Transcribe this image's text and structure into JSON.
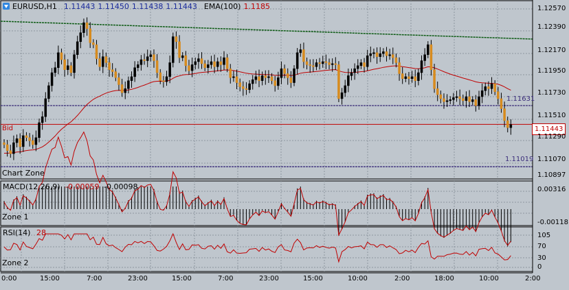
{
  "header": {
    "symbol": "EURUSD,H1",
    "open": "1.11443",
    "high": "1.11450",
    "low": "1.11438",
    "close": "1.11443",
    "ema_label": "EMA(100)",
    "ema_value": "1.1185"
  },
  "main_pane": {
    "bid_label": "Bid",
    "bid_value": "1.11443",
    "zone_label": "Chart Zone",
    "upper_level_label": "1.11631",
    "lower_level_label": "1.11019",
    "price_axis": [
      "1.12570",
      "1.12390",
      "1.12170",
      "1.11950",
      "1.11730",
      "1.11510",
      "1.11290",
      "1.11070",
      "1.10897"
    ]
  },
  "macd_pane": {
    "label": "MACD(12,26,9)",
    "value1": "-0.00059",
    "value2": "-0.00098",
    "zone_label": "Zone 1",
    "axis": [
      "0.00316",
      "-0.00118"
    ]
  },
  "rsi_pane": {
    "label": "RSI(14)",
    "value": "28",
    "zone_label": "Zone 2",
    "axis": [
      "105",
      "70",
      "30",
      "0"
    ]
  },
  "time_axis": [
    "0:00",
    "15:00",
    "7:00",
    "23:00",
    "15:00",
    "7:00",
    "23:00",
    "15:00",
    "10:00",
    "2:00",
    "18:00",
    "10:00",
    "2:00"
  ],
  "colors": {
    "background": "#bfc6cd",
    "grid": "#8e969e",
    "candle_up": "#000000",
    "candle_down": "#d78b1e",
    "ema": "#c00000",
    "trendline": "#0b5a12",
    "level": "#3a2c7a",
    "bid": "#c00000"
  },
  "chart_data": {
    "type": "candlestick",
    "symbol": "EURUSD,H1",
    "ylim": [
      1.10897,
      1.1268
    ],
    "ema_period": 100,
    "horizontal_levels": [
      1.11631,
      1.11019
    ],
    "bid": 1.11443,
    "close": [
      1.1124,
      1.1118,
      1.1115,
      1.1126,
      1.113,
      1.1122,
      1.1133,
      1.1131,
      1.1128,
      1.1124,
      1.1131,
      1.1146,
      1.1152,
      1.117,
      1.1183,
      1.1196,
      1.1201,
      1.1216,
      1.1209,
      1.1199,
      1.1203,
      1.1196,
      1.1214,
      1.1227,
      1.1236,
      1.1246,
      1.124,
      1.1226,
      1.1224,
      1.121,
      1.1202,
      1.1212,
      1.1206,
      1.1199,
      1.1197,
      1.1191,
      1.1184,
      1.1176,
      1.118,
      1.1188,
      1.1192,
      1.1201,
      1.1204,
      1.1209,
      1.1208,
      1.1212,
      1.1214,
      1.1208,
      1.1196,
      1.1188,
      1.1187,
      1.1192,
      1.1206,
      1.1232,
      1.1227,
      1.1211,
      1.1213,
      1.1203,
      1.1198,
      1.1204,
      1.1207,
      1.121,
      1.1205,
      1.1201,
      1.1204,
      1.1207,
      1.1202,
      1.1207,
      1.1204,
      1.1211,
      1.12,
      1.1191,
      1.1192,
      1.1186,
      1.1182,
      1.118,
      1.1179,
      1.1185,
      1.1189,
      1.1192,
      1.1188,
      1.1193,
      1.1191,
      1.1192,
      1.1188,
      1.1183,
      1.1191,
      1.12,
      1.1195,
      1.1191,
      1.1186,
      1.12,
      1.1216,
      1.1219,
      1.1207,
      1.1204,
      1.1203,
      1.1202,
      1.1206,
      1.1205,
      1.1207,
      1.1206,
      1.1204,
      1.1205,
      1.1204,
      1.117,
      1.1176,
      1.1183,
      1.1193,
      1.1196,
      1.12,
      1.1203,
      1.1206,
      1.1202,
      1.1213,
      1.1215,
      1.1216,
      1.1212,
      1.1215,
      1.1217,
      1.1213,
      1.1214,
      1.1211,
      1.1206,
      1.1195,
      1.119,
      1.1192,
      1.119,
      1.1192,
      1.1188,
      1.1196,
      1.1208,
      1.1214,
      1.1224,
      1.1199,
      1.118,
      1.1174,
      1.117,
      1.1167,
      1.1168,
      1.1169,
      1.1171,
      1.1172,
      1.117,
      1.1168,
      1.1172,
      1.1167,
      1.1169,
      1.1163,
      1.1172,
      1.1178,
      1.1182,
      1.118,
      1.1185,
      1.1177,
      1.117,
      1.116,
      1.1148,
      1.1141,
      1.1144
    ]
  }
}
